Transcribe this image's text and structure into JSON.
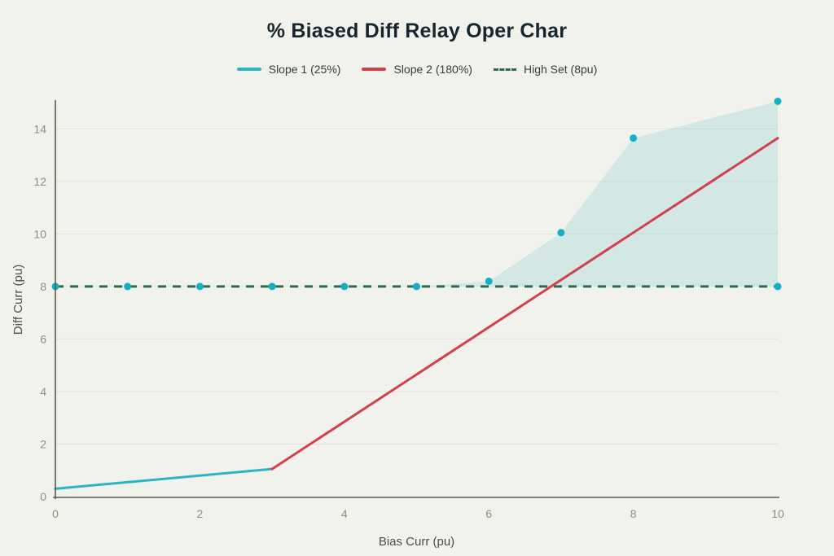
{
  "page": {
    "background": "#f2f2ec"
  },
  "chart_data": {
    "type": "line",
    "title": "% Biased Diff Relay Oper Char",
    "xlabel": "Bias Curr (pu)",
    "ylabel": "Diff Curr (pu)",
    "xlim": [
      0,
      10
    ],
    "ylim": [
      0,
      15.1
    ],
    "x_ticks": [
      0,
      2,
      4,
      6,
      8,
      10
    ],
    "y_ticks": [
      0,
      2,
      4,
      6,
      8,
      10,
      12,
      14
    ],
    "grid": "horizontal-only",
    "legend_position": "top-center",
    "series": [
      {
        "name": "Slope 1 (25%)",
        "type": "line",
        "color": "#2ab5c6",
        "points": [
          [
            0,
            0.3
          ],
          [
            3,
            1.05
          ]
        ]
      },
      {
        "name": "Slope 2 (180%)",
        "type": "line",
        "color": "#d2404a",
        "points": [
          [
            3,
            1.05
          ],
          [
            10,
            13.65
          ]
        ]
      },
      {
        "name": "High Set (8pu)",
        "type": "dashed-line",
        "color": "#2d6b50",
        "dash": [
          10,
          8
        ],
        "points": [
          [
            0,
            8
          ],
          [
            10,
            8
          ]
        ]
      }
    ],
    "operate_region": {
      "marker_color": "#14b1c6",
      "fill_color": "rgba(70,188,198,0.18)",
      "baseline": 8,
      "points": [
        [
          0,
          8
        ],
        [
          1,
          8
        ],
        [
          2,
          8
        ],
        [
          3,
          8
        ],
        [
          4,
          8
        ],
        [
          5,
          8
        ],
        [
          6,
          8.2
        ],
        [
          7,
          10.05
        ],
        [
          8,
          13.65
        ],
        [
          10,
          15.05
        ]
      ],
      "close_point": [
        10,
        8
      ]
    },
    "colors": {
      "title": "#15262e",
      "legend_text": "#2e403c",
      "tick_label": "#8c8d83",
      "axis_title": "#47504a",
      "axis_line": "#585950",
      "gridline": "#e6e6de"
    }
  }
}
